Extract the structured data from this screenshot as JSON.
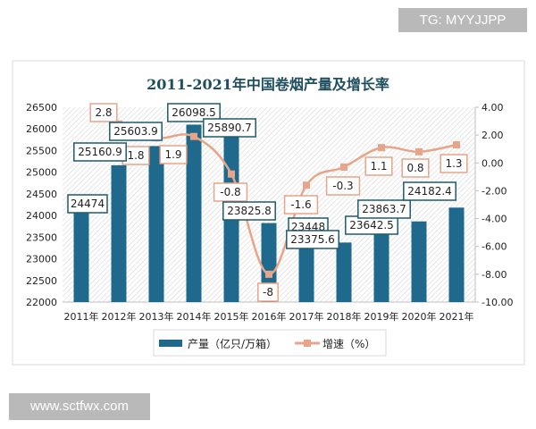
{
  "watermark_top": "TG: MYYJJPP",
  "watermark_bottom": "www.sctfwx.com",
  "chart_data": {
    "type": "bar+line",
    "title": "2011-2021年中国卷烟产量及增长率",
    "categories": [
      "2011年",
      "2012年",
      "2013年",
      "2014年",
      "2015年",
      "2016年",
      "2017年",
      "2018年",
      "2019年",
      "2020年",
      "2021年"
    ],
    "series": [
      {
        "name": "产量（亿只/万箱）",
        "type": "bar",
        "axis": "left",
        "color": "#1f6a8c",
        "values": [
          24474,
          25160.9,
          25603.9,
          26098.5,
          25890.7,
          23825.8,
          23448,
          23375.6,
          23642.5,
          23863.7,
          24182.4
        ],
        "labels": [
          "24474",
          "25160.9",
          "25603.9",
          "26098.5",
          "25890.7",
          "23825.8",
          "23448",
          "23375.6",
          "23642.5",
          "23863.7",
          "24182.4"
        ]
      },
      {
        "name": "增速（%）",
        "type": "line",
        "axis": "right",
        "color": "#e8a488",
        "values": [
          null,
          2.8,
          1.8,
          1.9,
          -0.8,
          -8,
          -1.6,
          -0.3,
          1.1,
          0.8,
          1.3
        ],
        "labels": [
          "",
          "2.8",
          "1.8",
          "1.9",
          "-0.8",
          "-8",
          "-1.6",
          "-0.3",
          "1.1",
          "0.8",
          "1.3"
        ]
      }
    ],
    "y_left": {
      "min": 22000,
      "max": 26500,
      "ticks": [
        "22000",
        "22500",
        "23000",
        "23500",
        "24000",
        "24500",
        "25000",
        "25500",
        "26000",
        "26500"
      ]
    },
    "y_right": {
      "min": -10,
      "max": 4,
      "ticks": [
        "-10.00",
        "-8.00",
        "-6.00",
        "-4.00",
        "-2.00",
        "0.00",
        "2.00",
        "4.00"
      ]
    },
    "legend_position": "bottom",
    "grid": false
  }
}
